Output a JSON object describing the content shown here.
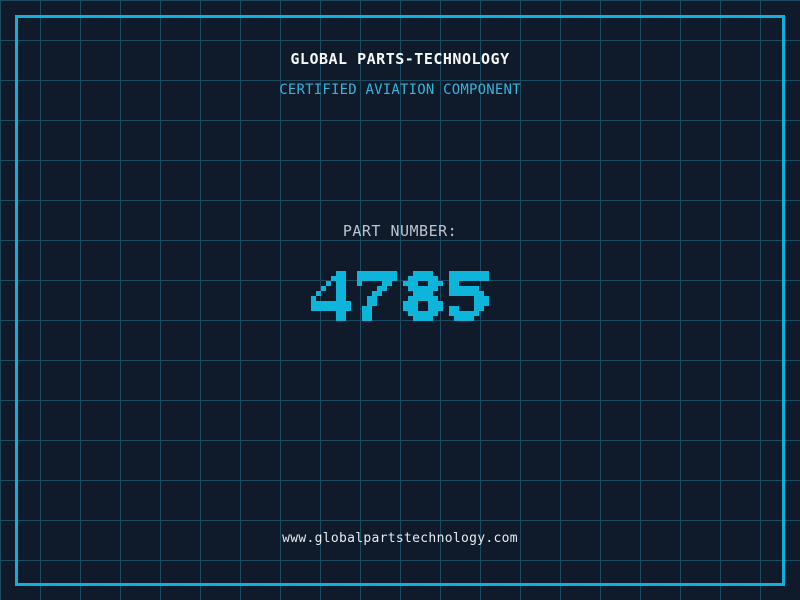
{
  "header": {
    "title": "GLOBAL PARTS-TECHNOLOGY",
    "subtitle": "CERTIFIED AVIATION COMPONENT"
  },
  "part": {
    "label": "PART NUMBER:",
    "number": "4785"
  },
  "footer": {
    "url": "www.globalpartstechnology.com"
  },
  "colors": {
    "background": "#0f1a2b",
    "grid_line": "#1b4a63",
    "frame": "#10b1d9",
    "title_text": "#f5f8fa",
    "subtitle_text": "#38b3d8",
    "label_text": "#bcc5cd",
    "digit": "#0cb5d9",
    "url_text": "#e6ebf0"
  }
}
